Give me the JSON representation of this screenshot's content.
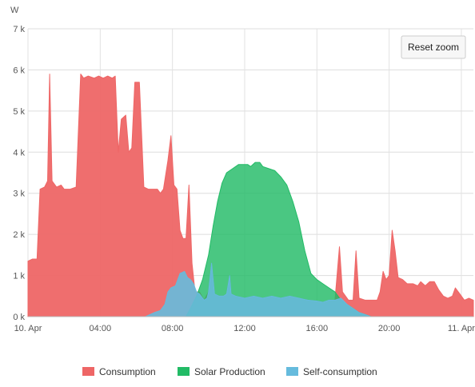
{
  "chart_data": {
    "type": "area",
    "ylabel": "W",
    "ylim": [
      0,
      7000
    ],
    "xlim": [
      "10. Apr 00:00",
      "11. Apr 00:40"
    ],
    "y_ticks": [
      "0 k",
      "1 k",
      "2 k",
      "3 k",
      "4 k",
      "5 k",
      "6 k",
      "7 k"
    ],
    "x_ticks": [
      "10. Apr",
      "04:00",
      "08:00",
      "12:00",
      "16:00",
      "20:00",
      "11. Apr"
    ],
    "grid": true,
    "legend_position": "bottom-center",
    "reset_zoom_label": "Reset zoom",
    "series": [
      {
        "name": "Consumption",
        "color": "#ee6666",
        "points": [
          [
            "00:00",
            0
          ],
          [
            "00:00",
            1350
          ],
          [
            "00:15",
            1400
          ],
          [
            "00:30",
            1400
          ],
          [
            "00:40",
            3100
          ],
          [
            "00:55",
            3150
          ],
          [
            "01:05",
            3300
          ],
          [
            "01:12",
            5900
          ],
          [
            "01:20",
            3300
          ],
          [
            "01:35",
            3150
          ],
          [
            "01:50",
            3200
          ],
          [
            "02:00",
            3100
          ],
          [
            "02:20",
            3100
          ],
          [
            "02:40",
            3150
          ],
          [
            "02:55",
            5900
          ],
          [
            "03:05",
            5800
          ],
          [
            "03:20",
            5850
          ],
          [
            "03:40",
            5800
          ],
          [
            "03:55",
            5850
          ],
          [
            "04:10",
            5800
          ],
          [
            "04:25",
            5850
          ],
          [
            "04:40",
            5800
          ],
          [
            "04:50",
            5850
          ],
          [
            "05:00",
            4000
          ],
          [
            "05:10",
            4800
          ],
          [
            "05:25",
            4900
          ],
          [
            "05:35",
            4000
          ],
          [
            "05:45",
            4100
          ],
          [
            "05:55",
            5700
          ],
          [
            "06:10",
            5700
          ],
          [
            "06:25",
            3150
          ],
          [
            "06:40",
            3100
          ],
          [
            "07:00",
            3100
          ],
          [
            "07:10",
            3100
          ],
          [
            "07:20",
            3000
          ],
          [
            "07:30",
            3100
          ],
          [
            "07:45",
            3800
          ],
          [
            "07:55",
            4400
          ],
          [
            "08:05",
            3200
          ],
          [
            "08:15",
            3100
          ],
          [
            "08:25",
            2100
          ],
          [
            "08:35",
            1900
          ],
          [
            "08:45",
            1900
          ],
          [
            "08:55",
            3200
          ],
          [
            "09:05",
            1300
          ],
          [
            "09:15",
            600
          ],
          [
            "09:30",
            600
          ],
          [
            "09:45",
            400
          ],
          [
            "10:00",
            600
          ],
          [
            "10:10",
            1300
          ],
          [
            "10:20",
            550
          ],
          [
            "10:35",
            500
          ],
          [
            "10:50",
            500
          ],
          [
            "11:00",
            550
          ],
          [
            "11:10",
            1000
          ],
          [
            "11:15",
            550
          ],
          [
            "11:30",
            500
          ],
          [
            "12:00",
            450
          ],
          [
            "12:30",
            500
          ],
          [
            "13:00",
            450
          ],
          [
            "13:30",
            500
          ],
          [
            "14:00",
            450
          ],
          [
            "14:30",
            500
          ],
          [
            "15:00",
            450
          ],
          [
            "15:30",
            400
          ],
          [
            "16:00",
            380
          ],
          [
            "16:20",
            350
          ],
          [
            "16:40",
            400
          ],
          [
            "17:00",
            400
          ],
          [
            "17:15",
            1700
          ],
          [
            "17:25",
            600
          ],
          [
            "17:45",
            400
          ],
          [
            "18:00",
            400
          ],
          [
            "18:10",
            1600
          ],
          [
            "18:20",
            450
          ],
          [
            "18:40",
            400
          ],
          [
            "19:00",
            400
          ],
          [
            "19:20",
            400
          ],
          [
            "19:30",
            600
          ],
          [
            "19:40",
            1100
          ],
          [
            "19:50",
            900
          ],
          [
            "20:00",
            1000
          ],
          [
            "20:10",
            2100
          ],
          [
            "20:20",
            1600
          ],
          [
            "20:30",
            950
          ],
          [
            "20:45",
            900
          ],
          [
            "21:00",
            800
          ],
          [
            "21:20",
            800
          ],
          [
            "21:35",
            750
          ],
          [
            "21:45",
            850
          ],
          [
            "22:00",
            750
          ],
          [
            "22:15",
            850
          ],
          [
            "22:30",
            850
          ],
          [
            "22:45",
            650
          ],
          [
            "23:00",
            500
          ],
          [
            "23:15",
            450
          ],
          [
            "23:30",
            500
          ],
          [
            "23:40",
            700
          ],
          [
            "23:55",
            550
          ],
          [
            "24:10",
            400
          ],
          [
            "24:25",
            450
          ],
          [
            "24:40",
            400
          ],
          [
            "24:40",
            0
          ]
        ]
      },
      {
        "name": "Solar Production",
        "color": "#22bb66",
        "points": [
          [
            "08:45",
            0
          ],
          [
            "09:00",
            200
          ],
          [
            "09:20",
            500
          ],
          [
            "09:40",
            900
          ],
          [
            "10:00",
            1500
          ],
          [
            "10:15",
            2200
          ],
          [
            "10:30",
            2800
          ],
          [
            "10:45",
            3250
          ],
          [
            "11:00",
            3500
          ],
          [
            "11:20",
            3600
          ],
          [
            "11:40",
            3700
          ],
          [
            "12:00",
            3700
          ],
          [
            "12:10",
            3700
          ],
          [
            "12:20",
            3650
          ],
          [
            "12:35",
            3750
          ],
          [
            "12:50",
            3750
          ],
          [
            "13:00",
            3650
          ],
          [
            "13:20",
            3600
          ],
          [
            "13:40",
            3550
          ],
          [
            "14:00",
            3400
          ],
          [
            "14:20",
            3200
          ],
          [
            "14:40",
            2800
          ],
          [
            "15:00",
            2300
          ],
          [
            "15:20",
            1600
          ],
          [
            "15:40",
            1050
          ],
          [
            "16:00",
            900
          ],
          [
            "16:20",
            800
          ],
          [
            "16:40",
            700
          ],
          [
            "17:00",
            600
          ],
          [
            "17:20",
            400
          ],
          [
            "17:40",
            300
          ],
          [
            "18:00",
            200
          ],
          [
            "18:20",
            100
          ],
          [
            "18:40",
            50
          ],
          [
            "19:00",
            0
          ]
        ]
      },
      {
        "name": "Self-consumption",
        "color": "#66bbdd",
        "points": [
          [
            "06:30",
            0
          ],
          [
            "06:45",
            50
          ],
          [
            "07:00",
            100
          ],
          [
            "07:20",
            150
          ],
          [
            "07:35",
            300
          ],
          [
            "07:45",
            600
          ],
          [
            "07:55",
            700
          ],
          [
            "08:10",
            750
          ],
          [
            "08:25",
            1050
          ],
          [
            "08:40",
            1100
          ],
          [
            "08:50",
            950
          ],
          [
            "09:00",
            900
          ],
          [
            "09:10",
            800
          ],
          [
            "09:20",
            600
          ],
          [
            "09:30",
            550
          ],
          [
            "09:45",
            400
          ],
          [
            "09:55",
            450
          ],
          [
            "10:00",
            600
          ],
          [
            "10:10",
            1300
          ],
          [
            "10:20",
            550
          ],
          [
            "10:35",
            500
          ],
          [
            "10:50",
            500
          ],
          [
            "11:00",
            550
          ],
          [
            "11:10",
            1000
          ],
          [
            "11:15",
            550
          ],
          [
            "11:30",
            500
          ],
          [
            "12:00",
            450
          ],
          [
            "12:30",
            500
          ],
          [
            "13:00",
            450
          ],
          [
            "13:30",
            500
          ],
          [
            "14:00",
            450
          ],
          [
            "14:30",
            500
          ],
          [
            "15:00",
            450
          ],
          [
            "15:30",
            400
          ],
          [
            "16:00",
            380
          ],
          [
            "16:20",
            350
          ],
          [
            "16:40",
            400
          ],
          [
            "17:00",
            400
          ],
          [
            "17:20",
            450
          ],
          [
            "17:40",
            300
          ],
          [
            "18:00",
            200
          ],
          [
            "18:20",
            100
          ],
          [
            "18:40",
            50
          ],
          [
            "19:00",
            0
          ]
        ]
      }
    ]
  }
}
